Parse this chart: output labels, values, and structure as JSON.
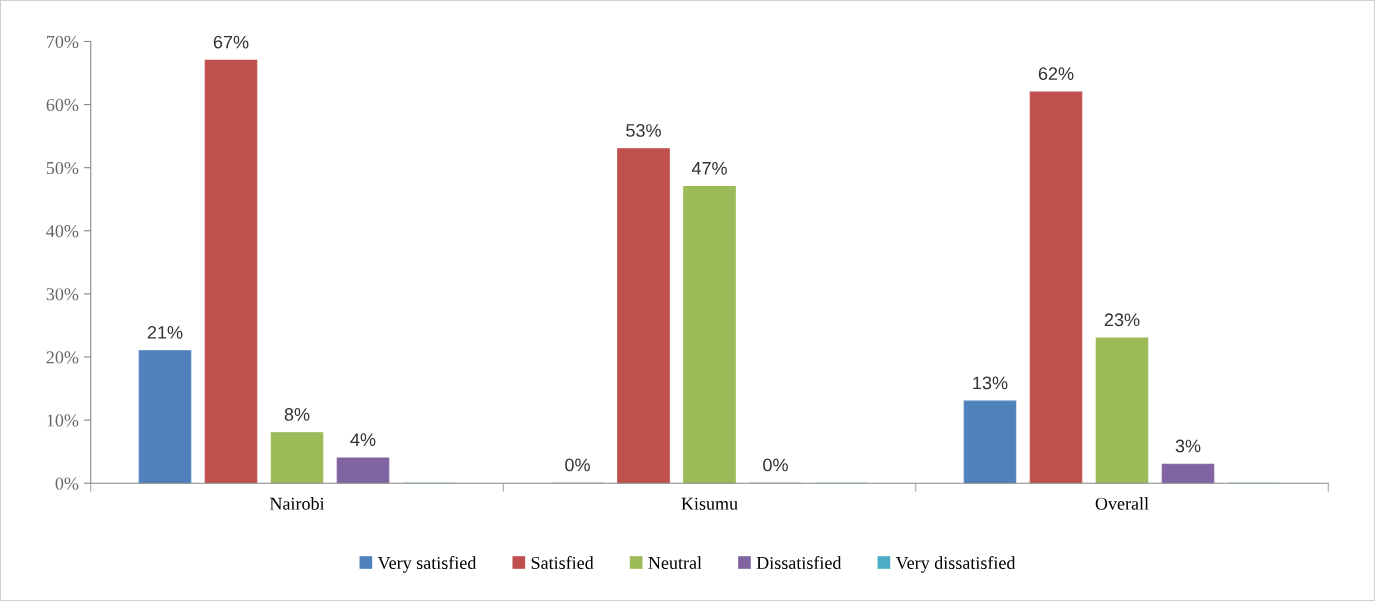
{
  "chart_data": {
    "type": "bar",
    "categories": [
      "Nairobi",
      "Kisumu",
      "Overall"
    ],
    "series": [
      {
        "name": "Very satisfied",
        "color": "#4f81bd",
        "values": [
          21,
          0,
          13
        ],
        "value_labels": [
          "21%",
          "0%",
          "13%"
        ]
      },
      {
        "name": "Satisfied",
        "color": "#c0504d",
        "values": [
          67,
          53,
          62
        ],
        "value_labels": [
          "67%",
          "53%",
          "62%"
        ]
      },
      {
        "name": "Neutral",
        "color": "#9bbb59",
        "values": [
          8,
          47,
          23
        ],
        "value_labels": [
          "8%",
          "47%",
          "23%"
        ]
      },
      {
        "name": "Dissatisfied",
        "color": "#8064a2",
        "values": [
          4,
          0,
          3
        ],
        "value_labels": [
          "4%",
          "0%",
          "3%"
        ]
      },
      {
        "name": "Very dissatisfied",
        "color": "#4bacc6",
        "values": [
          0,
          0,
          0
        ],
        "value_labels": [
          null,
          null,
          null
        ]
      }
    ],
    "ylim": [
      0,
      70
    ],
    "yticks": [
      {
        "value": 0,
        "label": "0%"
      },
      {
        "value": 10,
        "label": "10%"
      },
      {
        "value": 20,
        "label": "20%"
      },
      {
        "value": 30,
        "label": "30%"
      },
      {
        "value": 40,
        "label": "40%"
      },
      {
        "value": 50,
        "label": "50%"
      },
      {
        "value": 60,
        "label": "60%"
      },
      {
        "value": 70,
        "label": "70%"
      }
    ],
    "grid": false,
    "legend": "bottom"
  }
}
